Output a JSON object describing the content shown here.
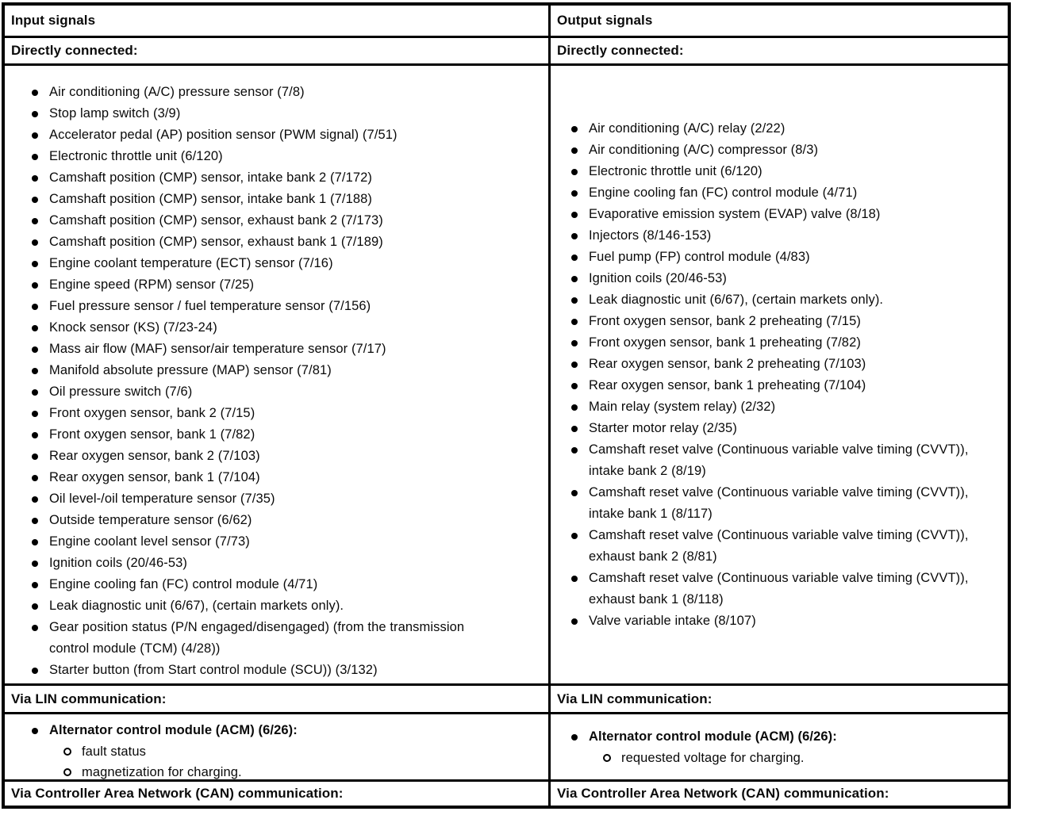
{
  "table": {
    "columns": [
      {
        "header": "Input signals",
        "directly_connected": {
          "label": "Directly connected:",
          "items": [
            "Air conditioning (A/C) pressure sensor (7/8)",
            "Stop lamp switch (3/9)",
            "Accelerator pedal (AP) position sensor (PWM signal) (7/51)",
            "Electronic throttle unit (6/120)",
            "Camshaft position (CMP) sensor, intake bank 2 (7/172)",
            "Camshaft position (CMP) sensor, intake bank 1 (7/188)",
            "Camshaft position (CMP) sensor, exhaust bank 2 (7/173)",
            "Camshaft position (CMP) sensor, exhaust bank 1 (7/189)",
            "Engine coolant temperature (ECT) sensor (7/16)",
            "Engine speed (RPM) sensor (7/25)",
            "Fuel pressure sensor / fuel temperature sensor (7/156)",
            "Knock sensor (KS) (7/23-24)",
            "Mass air flow (MAF) sensor/air temperature sensor (7/17)",
            "Manifold absolute pressure (MAP) sensor (7/81)",
            "Oil pressure switch (7/6)",
            "Front oxygen sensor, bank 2 (7/15)",
            "Front oxygen sensor, bank 1 (7/82)",
            "Rear oxygen sensor, bank 2 (7/103)",
            "Rear oxygen sensor, bank 1 (7/104)",
            "Oil level-/oil temperature sensor (7/35)",
            "Outside temperature sensor (6/62)",
            "Engine coolant level sensor (7/73)",
            "Ignition coils (20/46-53)",
            "Engine cooling fan (FC) control module (4/71)",
            "Leak diagnostic unit (6/67), (certain markets only).",
            "Gear position status (P/N engaged/disengaged) (from the transmission control module (TCM) (4/28))",
            "Starter button (from Start control module (SCU)) (3/132)"
          ]
        },
        "lin": {
          "label": "Via LIN communication:",
          "module": "Alternator control module (ACM) (6/26):",
          "subitems": [
            "fault status",
            "magnetization for charging."
          ]
        },
        "can": {
          "label": "Via Controller Area Network (CAN) communication:"
        }
      },
      {
        "header": "Output signals",
        "directly_connected": {
          "label": "Directly connected:",
          "items": [
            "Air conditioning (A/C) relay (2/22)",
            "Air conditioning (A/C) compressor (8/3)",
            "Electronic throttle unit (6/120)",
            "Engine cooling fan (FC) control module (4/71)",
            "Evaporative emission system (EVAP) valve (8/18)",
            "Injectors (8/146-153)",
            "Fuel pump (FP) control module (4/83)",
            "Ignition coils (20/46-53)",
            "Leak diagnostic unit (6/67), (certain markets only).",
            "Front oxygen sensor, bank 2 preheating (7/15)",
            "Front oxygen sensor, bank 1 preheating (7/82)",
            "Rear oxygen sensor, bank 2 preheating (7/103)",
            "Rear oxygen sensor, bank 1 preheating (7/104)",
            "Main relay (system relay) (2/32)",
            "Starter motor relay (2/35)",
            "Camshaft reset valve (Continuous variable valve timing (CVVT)), intake bank 2 (8/19)",
            "Camshaft reset valve (Continuous variable valve timing (CVVT)), intake bank 1 (8/117)",
            "Camshaft reset valve (Continuous variable valve timing (CVVT)), exhaust bank 2 (8/81)",
            "Camshaft reset valve (Continuous variable valve timing (CVVT)), exhaust bank 1 (8/118)",
            "Valve variable intake (8/107)"
          ]
        },
        "lin": {
          "label": "Via LIN communication:",
          "module": "Alternator control module (ACM) (6/26):",
          "subitems": [
            "requested voltage for charging."
          ]
        },
        "can": {
          "label": "Via Controller Area Network (CAN) communication:"
        }
      }
    ],
    "colors": {
      "border": "#000000",
      "text": "#0a0a0a",
      "background": "#ffffff"
    }
  }
}
